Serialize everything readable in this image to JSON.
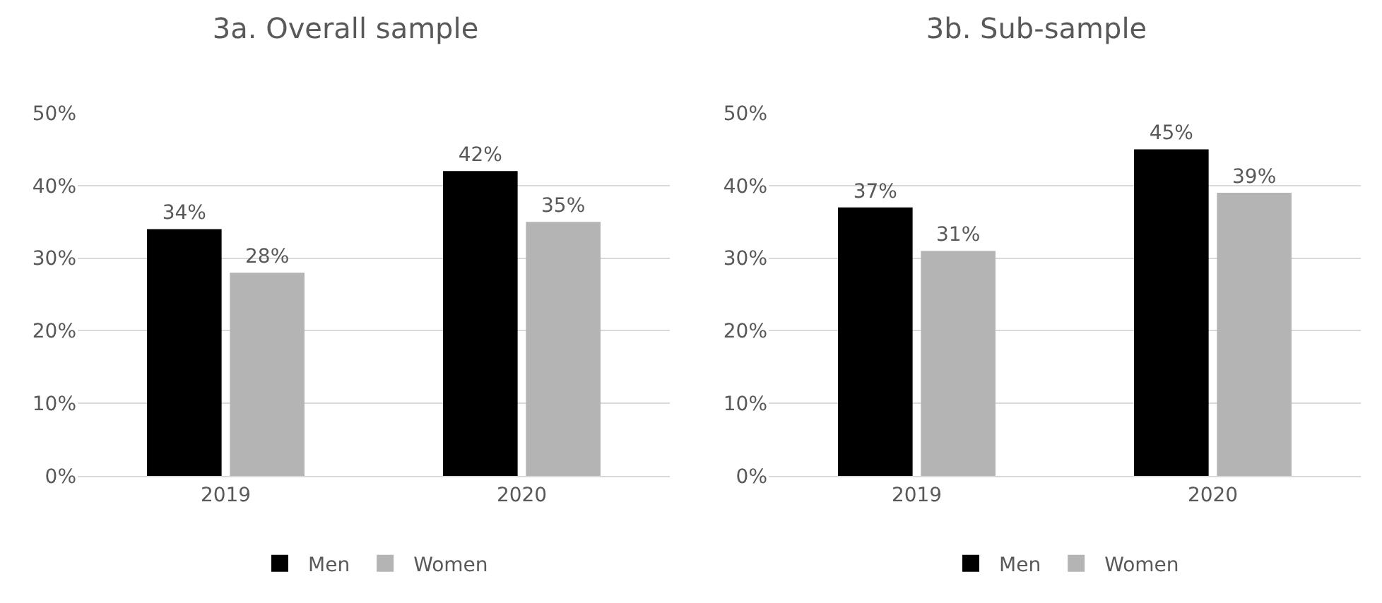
{
  "chart_data": [
    {
      "type": "bar",
      "title": "3a. Overall sample",
      "categories": [
        "2019",
        "2020"
      ],
      "series": [
        {
          "name": "Men",
          "color": "#000000",
          "values": [
            34,
            42
          ],
          "value_labels": [
            "34%",
            "42%"
          ]
        },
        {
          "name": "Women",
          "color": "#b4b4b4",
          "values": [
            28,
            35
          ],
          "value_labels": [
            "28%",
            "35%"
          ]
        }
      ],
      "ylim": [
        0,
        50
      ],
      "yticks": [
        {
          "value": 0,
          "label": "0%"
        },
        {
          "value": 10,
          "label": "10%"
        },
        {
          "value": 20,
          "label": "20%"
        },
        {
          "value": 30,
          "label": "30%"
        },
        {
          "value": 40,
          "label": "40%"
        },
        {
          "value": 50,
          "label": "50%"
        }
      ],
      "grid": "y",
      "legend": "bottom"
    },
    {
      "type": "bar",
      "title": "3b. Sub-sample",
      "categories": [
        "2019",
        "2020"
      ],
      "series": [
        {
          "name": "Men",
          "color": "#000000",
          "values": [
            37,
            45
          ],
          "value_labels": [
            "37%",
            "45%"
          ]
        },
        {
          "name": "Women",
          "color": "#b4b4b4",
          "values": [
            31,
            39
          ],
          "value_labels": [
            "31%",
            "39%"
          ]
        }
      ],
      "ylim": [
        0,
        50
      ],
      "yticks": [
        {
          "value": 0,
          "label": "0%"
        },
        {
          "value": 10,
          "label": "10%"
        },
        {
          "value": 20,
          "label": "20%"
        },
        {
          "value": 30,
          "label": "30%"
        },
        {
          "value": 40,
          "label": "40%"
        },
        {
          "value": 50,
          "label": "50%"
        }
      ],
      "grid": "y",
      "legend": "bottom"
    }
  ]
}
